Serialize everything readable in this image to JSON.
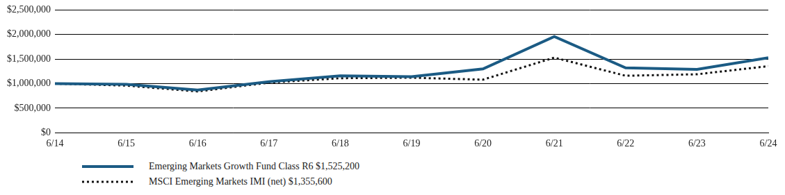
{
  "chart_data": {
    "type": "line",
    "categories": [
      "6/14",
      "6/15",
      "6/16",
      "6/17",
      "6/18",
      "6/19",
      "6/20",
      "6/21",
      "6/22",
      "6/23",
      "6/24"
    ],
    "series": [
      {
        "name": "Emerging Markets Growth Fund Class R6 $1,525,200",
        "color": "#1b5b84",
        "line_style": "solid",
        "marker": "none",
        "values": [
          1000000,
          985000,
          870000,
          1040000,
          1160000,
          1140000,
          1300000,
          1960000,
          1320000,
          1290000,
          1525200
        ]
      },
      {
        "name": "MSCI Emerging Markets IMI (net) $1,355,600",
        "color": "#111111",
        "line_style": "dotted",
        "marker": "none",
        "values": [
          1000000,
          960000,
          840000,
          1020000,
          1110000,
          1120000,
          1080000,
          1530000,
          1160000,
          1190000,
          1355600
        ]
      }
    ],
    "ylim": [
      0,
      2500000
    ],
    "yticks": [
      {
        "value": 0,
        "label": "$0"
      },
      {
        "value": 500000,
        "label": "$500,000"
      },
      {
        "value": 1000000,
        "label": "$1,000,000"
      },
      {
        "value": 1500000,
        "label": "$1,500,000"
      },
      {
        "value": 2000000,
        "label": "$2,000,000"
      },
      {
        "value": 2500000,
        "label": "$2,500,000"
      }
    ],
    "grid": true,
    "legend": "bottom"
  }
}
